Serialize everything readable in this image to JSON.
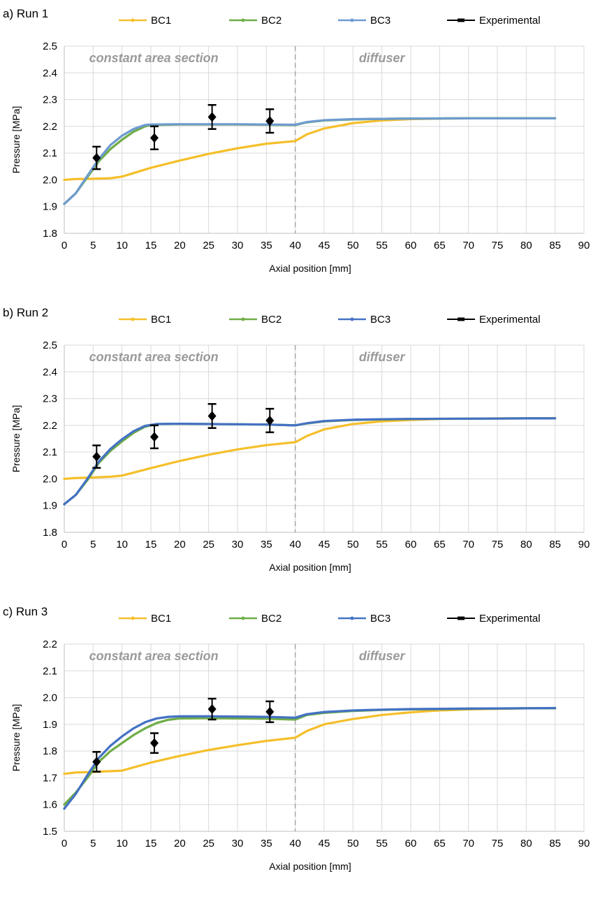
{
  "chart_data": [
    {
      "type": "line",
      "title": "a) Run 1",
      "xlabel": "Axial position [mm]",
      "ylabel": "Pressure [MPa]",
      "xlim": [
        0,
        90
      ],
      "ylim": [
        1.8,
        2.5
      ],
      "xticks": [
        "0",
        "5",
        "10",
        "15",
        "20",
        "25",
        "30",
        "35",
        "40",
        "45",
        "50",
        "55",
        "60",
        "65",
        "70",
        "75",
        "80",
        "85",
        "90"
      ],
      "yticks": [
        "1.8",
        "1.9",
        "2.0",
        "2.1",
        "2.2",
        "2.3",
        "2.4",
        "2.5"
      ],
      "grid": true,
      "divider_x": 40,
      "regions": [
        "constant area section",
        "diffuser"
      ],
      "legend": [
        "BC1",
        "BC2",
        "BC3",
        "Experimental"
      ],
      "series": [
        {
          "name": "BC1",
          "color": "#f5bf2a",
          "points": [
            [
              0,
              2.0
            ],
            [
              2,
              2.003
            ],
            [
              5,
              2.004
            ],
            [
              8,
              2.006
            ],
            [
              10,
              2.012
            ],
            [
              15,
              2.045
            ],
            [
              20,
              2.072
            ],
            [
              25,
              2.097
            ],
            [
              30,
              2.118
            ],
            [
              35,
              2.135
            ],
            [
              40,
              2.145
            ],
            [
              42,
              2.17
            ],
            [
              45,
              2.192
            ],
            [
              50,
              2.212
            ],
            [
              55,
              2.222
            ],
            [
              60,
              2.227
            ],
            [
              65,
              2.229
            ],
            [
              70,
              2.23
            ],
            [
              75,
              2.23
            ],
            [
              80,
              2.23
            ],
            [
              85,
              2.23
            ]
          ]
        },
        {
          "name": "BC2",
          "color": "#70ad47",
          "points": [
            [
              0,
              1.91
            ],
            [
              2,
              1.95
            ],
            [
              4,
              2.01
            ],
            [
              6,
              2.07
            ],
            [
              8,
              2.115
            ],
            [
              10,
              2.15
            ],
            [
              12,
              2.18
            ],
            [
              14,
              2.2
            ],
            [
              15,
              2.205
            ],
            [
              20,
              2.207
            ],
            [
              25,
              2.207
            ],
            [
              30,
              2.207
            ],
            [
              35,
              2.206
            ],
            [
              40,
              2.205
            ],
            [
              42,
              2.215
            ],
            [
              45,
              2.222
            ],
            [
              50,
              2.226
            ],
            [
              55,
              2.228
            ],
            [
              60,
              2.229
            ],
            [
              70,
              2.23
            ],
            [
              80,
              2.23
            ],
            [
              85,
              2.23
            ]
          ]
        },
        {
          "name": "BC3",
          "color": "#6e9bd0",
          "points": [
            [
              0,
              1.91
            ],
            [
              2,
              1.95
            ],
            [
              4,
              2.015
            ],
            [
              6,
              2.078
            ],
            [
              8,
              2.13
            ],
            [
              10,
              2.165
            ],
            [
              12,
              2.19
            ],
            [
              14,
              2.205
            ],
            [
              15,
              2.207
            ],
            [
              20,
              2.208
            ],
            [
              25,
              2.208
            ],
            [
              30,
              2.208
            ],
            [
              35,
              2.207
            ],
            [
              40,
              2.206
            ],
            [
              42,
              2.216
            ],
            [
              45,
              2.223
            ],
            [
              50,
              2.227
            ],
            [
              55,
              2.228
            ],
            [
              60,
              2.229
            ],
            [
              70,
              2.23
            ],
            [
              80,
              2.23
            ],
            [
              85,
              2.23
            ]
          ]
        }
      ],
      "experimental": [
        {
          "x": 5.6,
          "y": 2.082,
          "err": 0.042
        },
        {
          "x": 15.6,
          "y": 2.157,
          "err": 0.043
        },
        {
          "x": 25.6,
          "y": 2.235,
          "err": 0.045
        },
        {
          "x": 35.6,
          "y": 2.22,
          "err": 0.044
        }
      ]
    },
    {
      "type": "line",
      "title": "b) Run 2",
      "xlabel": "Axial position [mm]",
      "ylabel": "Pressure [MPa]",
      "xlim": [
        0,
        90
      ],
      "ylim": [
        1.8,
        2.5
      ],
      "xticks": [
        "0",
        "5",
        "10",
        "15",
        "20",
        "25",
        "30",
        "35",
        "40",
        "45",
        "50",
        "55",
        "60",
        "65",
        "70",
        "75",
        "80",
        "85",
        "90"
      ],
      "yticks": [
        "1.8",
        "1.9",
        "2.0",
        "2.1",
        "2.2",
        "2.3",
        "2.4",
        "2.5"
      ],
      "grid": true,
      "divider_x": 40,
      "regions": [
        "constant area section",
        "diffuser"
      ],
      "legend": [
        "BC1",
        "BC2",
        "BC3",
        "Experimental"
      ],
      "series": [
        {
          "name": "BC1",
          "color": "#f5bf2a",
          "points": [
            [
              0,
              2.0
            ],
            [
              2,
              2.003
            ],
            [
              5,
              2.005
            ],
            [
              8,
              2.008
            ],
            [
              10,
              2.012
            ],
            [
              15,
              2.04
            ],
            [
              20,
              2.067
            ],
            [
              25,
              2.09
            ],
            [
              30,
              2.11
            ],
            [
              35,
              2.126
            ],
            [
              40,
              2.137
            ],
            [
              42,
              2.16
            ],
            [
              45,
              2.185
            ],
            [
              50,
              2.205
            ],
            [
              55,
              2.215
            ],
            [
              60,
              2.22
            ],
            [
              65,
              2.224
            ],
            [
              70,
              2.225
            ],
            [
              75,
              2.226
            ],
            [
              80,
              2.226
            ],
            [
              85,
              2.227
            ]
          ]
        },
        {
          "name": "BC2",
          "color": "#70ad47",
          "points": [
            [
              0,
              1.905
            ],
            [
              2,
              1.94
            ],
            [
              4,
              1.995
            ],
            [
              6,
              2.06
            ],
            [
              8,
              2.105
            ],
            [
              10,
              2.14
            ],
            [
              12,
              2.172
            ],
            [
              14,
              2.195
            ],
            [
              16,
              2.205
            ],
            [
              20,
              2.206
            ],
            [
              25,
              2.205
            ],
            [
              30,
              2.204
            ],
            [
              35,
              2.203
            ],
            [
              40,
              2.2
            ],
            [
              42,
              2.207
            ],
            [
              45,
              2.215
            ],
            [
              50,
              2.22
            ],
            [
              55,
              2.222
            ],
            [
              60,
              2.224
            ],
            [
              70,
              2.225
            ],
            [
              80,
              2.226
            ],
            [
              85,
              2.226
            ]
          ]
        },
        {
          "name": "BC3",
          "color": "#4472c4",
          "points": [
            [
              0,
              1.905
            ],
            [
              2,
              1.94
            ],
            [
              4,
              2.0
            ],
            [
              6,
              2.065
            ],
            [
              8,
              2.112
            ],
            [
              10,
              2.148
            ],
            [
              12,
              2.178
            ],
            [
              14,
              2.198
            ],
            [
              16,
              2.205
            ],
            [
              20,
              2.206
            ],
            [
              25,
              2.205
            ],
            [
              30,
              2.204
            ],
            [
              35,
              2.203
            ],
            [
              40,
              2.2
            ],
            [
              42,
              2.208
            ],
            [
              45,
              2.216
            ],
            [
              50,
              2.221
            ],
            [
              55,
              2.223
            ],
            [
              60,
              2.224
            ],
            [
              70,
              2.225
            ],
            [
              80,
              2.226
            ],
            [
              85,
              2.226
            ]
          ]
        }
      ],
      "experimental": [
        {
          "x": 5.6,
          "y": 2.083,
          "err": 0.042
        },
        {
          "x": 15.6,
          "y": 2.157,
          "err": 0.043
        },
        {
          "x": 25.6,
          "y": 2.235,
          "err": 0.045
        },
        {
          "x": 35.6,
          "y": 2.218,
          "err": 0.044
        }
      ]
    },
    {
      "type": "line",
      "title": "c) Run 3",
      "xlabel": "Axial position [mm]",
      "ylabel": "Pressure [MPa]",
      "xlim": [
        0,
        90
      ],
      "ylim": [
        1.5,
        2.2
      ],
      "xticks": [
        "0",
        "5",
        "10",
        "15",
        "20",
        "25",
        "30",
        "35",
        "40",
        "45",
        "50",
        "55",
        "60",
        "65",
        "70",
        "75",
        "80",
        "85",
        "90"
      ],
      "yticks": [
        "1.5",
        "1.6",
        "1.7",
        "1.8",
        "1.9",
        "2.0",
        "2.1",
        "2.2"
      ],
      "grid": true,
      "divider_x": 40,
      "regions": [
        "constant area section",
        "diffuser"
      ],
      "legend": [
        "BC1",
        "BC2",
        "BC3",
        "Experimental"
      ],
      "series": [
        {
          "name": "BC1",
          "color": "#f5bf2a",
          "points": [
            [
              0,
              1.715
            ],
            [
              2,
              1.72
            ],
            [
              5,
              1.722
            ],
            [
              8,
              1.725
            ],
            [
              10,
              1.727
            ],
            [
              15,
              1.757
            ],
            [
              20,
              1.782
            ],
            [
              25,
              1.804
            ],
            [
              30,
              1.822
            ],
            [
              35,
              1.838
            ],
            [
              40,
              1.85
            ],
            [
              42,
              1.875
            ],
            [
              45,
              1.9
            ],
            [
              50,
              1.92
            ],
            [
              55,
              1.935
            ],
            [
              60,
              1.945
            ],
            [
              65,
              1.952
            ],
            [
              70,
              1.956
            ],
            [
              75,
              1.958
            ],
            [
              80,
              1.96
            ],
            [
              85,
              1.96
            ]
          ]
        },
        {
          "name": "BC2",
          "color": "#70ad47",
          "points": [
            [
              0,
              1.6
            ],
            [
              2,
              1.645
            ],
            [
              4,
              1.7
            ],
            [
              6,
              1.76
            ],
            [
              8,
              1.8
            ],
            [
              10,
              1.83
            ],
            [
              12,
              1.86
            ],
            [
              14,
              1.885
            ],
            [
              16,
              1.905
            ],
            [
              18,
              1.917
            ],
            [
              20,
              1.922
            ],
            [
              25,
              1.923
            ],
            [
              30,
              1.922
            ],
            [
              35,
              1.921
            ],
            [
              40,
              1.918
            ],
            [
              42,
              1.935
            ],
            [
              45,
              1.943
            ],
            [
              50,
              1.95
            ],
            [
              55,
              1.954
            ],
            [
              60,
              1.956
            ],
            [
              70,
              1.958
            ],
            [
              80,
              1.96
            ],
            [
              85,
              1.96
            ]
          ]
        },
        {
          "name": "BC3",
          "color": "#4472c4",
          "points": [
            [
              0,
              1.585
            ],
            [
              2,
              1.64
            ],
            [
              4,
              1.71
            ],
            [
              6,
              1.775
            ],
            [
              8,
              1.82
            ],
            [
              10,
              1.855
            ],
            [
              12,
              1.885
            ],
            [
              14,
              1.908
            ],
            [
              16,
              1.922
            ],
            [
              18,
              1.928
            ],
            [
              20,
              1.93
            ],
            [
              25,
              1.93
            ],
            [
              30,
              1.929
            ],
            [
              35,
              1.928
            ],
            [
              40,
              1.925
            ],
            [
              42,
              1.938
            ],
            [
              45,
              1.946
            ],
            [
              50,
              1.952
            ],
            [
              55,
              1.955
            ],
            [
              60,
              1.957
            ],
            [
              70,
              1.959
            ],
            [
              80,
              1.96
            ],
            [
              85,
              1.961
            ]
          ]
        }
      ],
      "experimental": [
        {
          "x": 5.6,
          "y": 1.76,
          "err": 0.037
        },
        {
          "x": 15.6,
          "y": 1.83,
          "err": 0.037
        },
        {
          "x": 25.6,
          "y": 1.957,
          "err": 0.039
        },
        {
          "x": 35.6,
          "y": 1.947,
          "err": 0.039
        }
      ]
    }
  ]
}
